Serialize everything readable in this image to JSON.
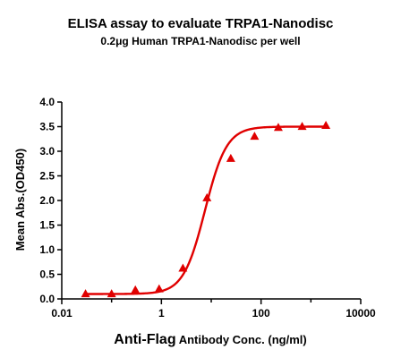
{
  "chart_data": {
    "type": "scatter",
    "title": "ELISA assay to evaluate TRPA1-Nanodisc",
    "subtitle": "0.2μg Human TRPA1-Nanodisc per well",
    "ylabel": "Mean Abs.(OD450)",
    "xlabel_main": "Anti-Flag",
    "xlabel_sub": " Antibody Conc. (ng/ml)",
    "x_scale": "log",
    "xlim": [
      0.01,
      10000
    ],
    "ylim": [
      0.0,
      4.0
    ],
    "x_ticks": [
      0.01,
      1,
      100,
      10000
    ],
    "x_tick_labels": [
      "0.01",
      "1",
      "100",
      "10000"
    ],
    "y_ticks": [
      0.0,
      0.5,
      1.0,
      1.5,
      2.0,
      2.5,
      3.0,
      3.5,
      4.0
    ],
    "y_tick_labels": [
      "0.0",
      "0.5",
      "1.0",
      "1.5",
      "2.0",
      "2.5",
      "3.0",
      "3.5",
      "4.0"
    ],
    "grid": false,
    "color": "#e00000",
    "marker": "triangle",
    "series": [
      {
        "x": [
          0.03,
          0.1,
          0.3,
          0.9,
          2.7,
          8.2,
          24.7,
          74,
          222,
          667,
          2000
        ],
        "y": [
          0.1,
          0.1,
          0.18,
          0.2,
          0.62,
          2.05,
          2.85,
          3.3,
          3.48,
          3.5,
          3.52
        ]
      }
    ],
    "fit_curve": {
      "bottom": 0.1,
      "top": 3.5,
      "ec50": 7.5,
      "hill": 2.0
    }
  }
}
